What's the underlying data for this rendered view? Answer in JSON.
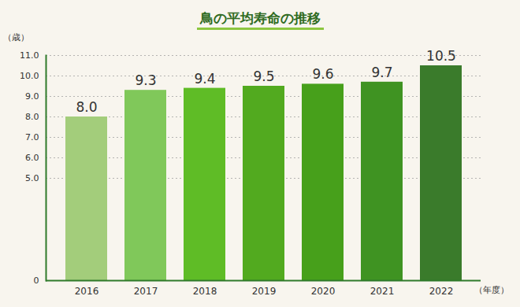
{
  "chart_data": {
    "type": "bar",
    "title": "鳥の平均寿命の推移",
    "xlabel": "（年度）",
    "ylabel": "（歳）",
    "categories": [
      "2016",
      "2017",
      "2018",
      "2019",
      "2020",
      "2021",
      "2022"
    ],
    "values": [
      8.0,
      9.3,
      9.4,
      9.5,
      9.6,
      9.7,
      10.5
    ],
    "value_labels": [
      "8.0",
      "9.3",
      "9.4",
      "9.5",
      "9.6",
      "9.7",
      "10.5"
    ],
    "colors": [
      "#a3cd7b",
      "#80c85a",
      "#5fbc26",
      "#52aa1f",
      "#47a01b",
      "#3f9322",
      "#3a7b2b"
    ],
    "ylim": [
      0,
      11
    ],
    "yticks": [
      0,
      {
        "value": 5,
        "label": "5.0"
      },
      {
        "value": 6,
        "label": "6.0"
      },
      {
        "value": 7,
        "label": "7.0"
      },
      {
        "value": 8,
        "label": "8.0"
      },
      {
        "value": 9,
        "label": "9.0"
      },
      {
        "value": 10,
        "label": "10.0"
      },
      {
        "value": 11,
        "label": "11.0"
      }
    ],
    "grid": true,
    "data_labels": true
  }
}
